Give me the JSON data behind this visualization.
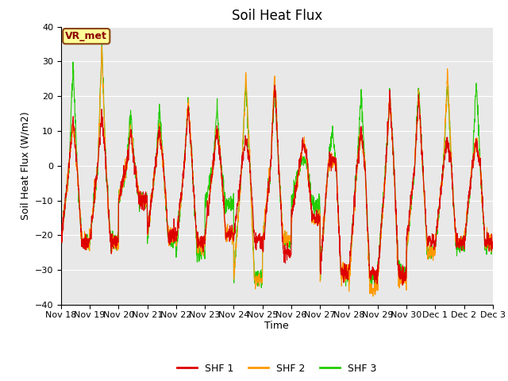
{
  "title": "Soil Heat Flux",
  "ylabel": "Soil Heat Flux (W/m2)",
  "xlabel": "Time",
  "ylim": [
    -40,
    40
  ],
  "yticks": [
    -40,
    -30,
    -20,
    -10,
    0,
    10,
    20,
    30,
    40
  ],
  "xtick_labels": [
    "Nov 18",
    "Nov 19",
    "Nov 20",
    "Nov 21",
    "Nov 22",
    "Nov 23",
    "Nov 24",
    "Nov 25",
    "Nov 26",
    "Nov 27",
    "Nov 28",
    "Nov 29",
    "Nov 30",
    "Dec 1",
    "Dec 2",
    "Dec 3"
  ],
  "colors": {
    "SHF1": "#dd0000",
    "SHF2": "#ff9900",
    "SHF3": "#22cc00"
  },
  "legend_labels": [
    "SHF 1",
    "SHF 2",
    "SHF 3"
  ],
  "annotation_text": "VR_met",
  "bg_color": "#e8e8e8",
  "title_fontsize": 12,
  "label_fontsize": 9,
  "tick_fontsize": 8,
  "linewidth": 0.8,
  "day_peaks_shf1": [
    13,
    15,
    10,
    11,
    17,
    11,
    8,
    24,
    7,
    2,
    10,
    20,
    19,
    7,
    7
  ],
  "day_peaks_shf2": [
    13,
    34,
    10,
    11,
    19,
    11,
    27,
    27,
    7,
    2,
    10,
    20,
    20,
    27,
    7
  ],
  "day_peaks_shf3": [
    29,
    34,
    16,
    16,
    19,
    17,
    24,
    24,
    2,
    10,
    21,
    21,
    24,
    24,
    24
  ],
  "day_night_shf1": [
    -22,
    -22,
    -10,
    -20,
    -22,
    -20,
    -21,
    -25,
    -15,
    -31,
    -31,
    -31,
    -22,
    -22,
    -22
  ],
  "day_night_shf2": [
    -22,
    -22,
    -10,
    -20,
    -23,
    -20,
    -33,
    -21,
    -15,
    -31,
    -35,
    -33,
    -25,
    -22,
    -22
  ],
  "day_night_shf3": [
    -22,
    -22,
    -10,
    -21,
    -25,
    -11,
    -32,
    -22,
    -11,
    -31,
    -32,
    -30,
    -25,
    -23,
    -23
  ]
}
